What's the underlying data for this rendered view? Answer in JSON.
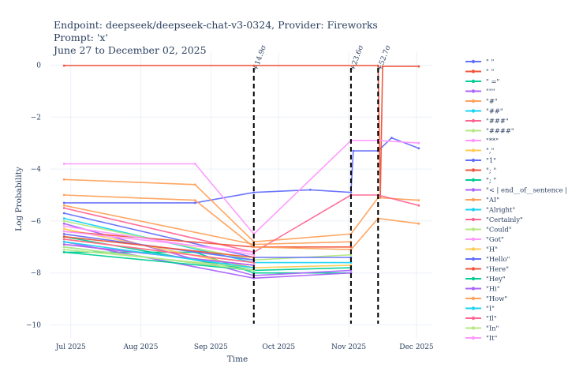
{
  "chart_data": {
    "type": "line",
    "title_lines": [
      "Endpoint: deepseek/deepseek-chat-v3-0324, Provider: Fireworks",
      "Prompt: 'x'",
      "June 27 to December 02, 2025"
    ],
    "xlabel": "Time",
    "ylabel": "Log Probability",
    "x_ticks": [
      "Jul 2025",
      "Aug 2025",
      "Sep 2025",
      "Oct 2025",
      "Nov 2025",
      "Dec 2025"
    ],
    "x_tick_dates": [
      "2025-07-01",
      "2025-08-01",
      "2025-09-01",
      "2025-10-01",
      "2025-11-01",
      "2025-12-01"
    ],
    "xlim": [
      "2025-06-22",
      "2025-12-08"
    ],
    "y_ticks": [
      0,
      -2,
      -4,
      -6,
      -8,
      -10
    ],
    "y_tick_labels": [
      "0",
      "−2",
      "−4",
      "−6",
      "−8",
      "−10"
    ],
    "ylim": [
      -10.5,
      0.5
    ],
    "grid": true,
    "legend_position": "right",
    "change_points": [
      {
        "date": "2025-09-20",
        "label": "+14.9σ"
      },
      {
        "date": "2025-11-02",
        "label": "+23.6σ"
      },
      {
        "date": "2025-11-14",
        "label": "+52.7σ"
      }
    ],
    "series": [
      {
        "name": "\" \"",
        "color": "#636efa",
        "values": [
          [
            "2025-06-28",
            -5.3
          ],
          [
            "2025-08-25",
            -5.3
          ],
          [
            "2025-09-20",
            -4.9
          ],
          [
            "2025-10-15",
            -4.8
          ],
          [
            "2025-11-02",
            -4.9
          ],
          [
            "2025-11-03",
            -3.3
          ],
          [
            "2025-11-14",
            -3.3
          ],
          [
            "2025-11-20",
            -2.8
          ],
          [
            "2025-12-02",
            -3.2
          ]
        ]
      },
      {
        "name": "\"  \"",
        "color": "#ef553b",
        "values": [
          [
            "2025-06-28",
            -0.02
          ],
          [
            "2025-09-20",
            -0.02
          ],
          [
            "2025-11-14",
            -0.02
          ],
          [
            "2025-11-15",
            -5.1
          ],
          [
            "2025-11-16",
            -0.05
          ],
          [
            "2025-12-02",
            -0.05
          ]
        ]
      },
      {
        "name": "\" =\"",
        "color": "#00cc96",
        "values": [
          [
            "2025-06-28",
            -7.2
          ],
          [
            "2025-08-25",
            -7.2
          ],
          [
            "2025-09-20",
            -8.0
          ],
          [
            "2025-11-02",
            -8.0
          ]
        ]
      },
      {
        "name": "\"\"\"",
        "color": "#ab63fa",
        "values": [
          [
            "2025-06-28",
            -6.1
          ],
          [
            "2025-09-20",
            -8.1
          ],
          [
            "2025-11-02",
            -7.9
          ]
        ]
      },
      {
        "name": "\"#\"",
        "color": "#ffa15a",
        "values": [
          [
            "2025-06-28",
            -4.4
          ],
          [
            "2025-08-25",
            -4.6
          ],
          [
            "2025-09-20",
            -6.8
          ],
          [
            "2025-11-02",
            -6.5
          ],
          [
            "2025-11-14",
            -5.1
          ],
          [
            "2025-12-02",
            -5.2
          ]
        ]
      },
      {
        "name": "\"##\"",
        "color": "#19d3f3",
        "values": [
          [
            "2025-06-28",
            -5.9
          ],
          [
            "2025-09-20",
            -7.6
          ],
          [
            "2025-11-02",
            -7.6
          ]
        ]
      },
      {
        "name": "\"###\"",
        "color": "#ff6692",
        "values": [
          [
            "2025-06-28",
            -5.5
          ],
          [
            "2025-09-20",
            -7.2
          ],
          [
            "2025-11-02",
            -5.0
          ],
          [
            "2025-11-14",
            -5.0
          ],
          [
            "2025-12-02",
            -5.4
          ]
        ]
      },
      {
        "name": "\"####\"",
        "color": "#b6e880",
        "values": [
          [
            "2025-06-28",
            -6.0
          ],
          [
            "2025-09-20",
            -7.5
          ],
          [
            "2025-11-02",
            -7.3
          ]
        ]
      },
      {
        "name": "\"**\"",
        "color": "#ff97ff",
        "values": [
          [
            "2025-06-28",
            -3.8
          ],
          [
            "2025-08-25",
            -3.8
          ],
          [
            "2025-09-20",
            -6.5
          ],
          [
            "2025-11-02",
            -2.9
          ],
          [
            "2025-11-14",
            -2.9
          ],
          [
            "2025-12-02",
            -3.0
          ]
        ]
      },
      {
        "name": "\",\"",
        "color": "#fecb52",
        "values": [
          [
            "2025-06-28",
            -6.3
          ],
          [
            "2025-09-20",
            -7.8
          ],
          [
            "2025-11-02",
            -7.7
          ]
        ]
      },
      {
        "name": "\"1\"",
        "color": "#636efa",
        "values": [
          [
            "2025-06-28",
            -5.7
          ],
          [
            "2025-09-20",
            -7.4
          ],
          [
            "2025-11-02",
            -7.4
          ]
        ]
      },
      {
        "name": "\"; \"",
        "color": "#ef553b",
        "values": [
          [
            "2025-06-28",
            -6.4
          ],
          [
            "2025-09-20",
            -7.0
          ],
          [
            "2025-11-02",
            -7.0
          ]
        ]
      },
      {
        "name": "\";  \"",
        "color": "#00cc96",
        "values": [
          [
            "2025-06-28",
            -6.6
          ],
          [
            "2025-09-20",
            -7.9
          ],
          [
            "2025-11-02",
            -7.8
          ]
        ]
      },
      {
        "name": "\"< | end__of__sentence | >\"",
        "color": "#ab63fa",
        "values": [
          [
            "2025-06-28",
            -6.8
          ],
          [
            "2025-09-20",
            -8.2
          ],
          [
            "2025-11-02",
            -8.0
          ]
        ]
      },
      {
        "name": "\"AI\"",
        "color": "#ffa15a",
        "values": [
          [
            "2025-06-28",
            -5.0
          ],
          [
            "2025-08-25",
            -5.2
          ],
          [
            "2025-09-20",
            -7.0
          ],
          [
            "2025-11-02",
            -7.1
          ],
          [
            "2025-11-14",
            -5.9
          ],
          [
            "2025-12-02",
            -6.1
          ]
        ]
      },
      {
        "name": "\"Alright\"",
        "color": "#19d3f3",
        "values": [
          [
            "2025-06-28",
            -7.0
          ],
          [
            "2025-09-20",
            -7.9
          ]
        ]
      },
      {
        "name": "\"Certainly\"",
        "color": "#ff6692",
        "values": [
          [
            "2025-06-28",
            -6.9
          ],
          [
            "2025-09-20",
            -7.7
          ]
        ]
      },
      {
        "name": "\"Could\"",
        "color": "#b6e880",
        "values": [
          [
            "2025-06-28",
            -7.1
          ],
          [
            "2025-09-20",
            -7.8
          ]
        ]
      },
      {
        "name": "\"Got\"",
        "color": "#ff97ff",
        "values": [
          [
            "2025-06-28",
            -6.2
          ],
          [
            "2025-09-20",
            -7.3
          ]
        ]
      },
      {
        "name": "\"H\"",
        "color": "#fecb52",
        "values": [
          [
            "2025-06-28",
            -6.7
          ],
          [
            "2025-09-20",
            -7.6
          ]
        ]
      },
      {
        "name": "\"Hello\"",
        "color": "#636efa",
        "values": [
          [
            "2025-06-28",
            -6.5
          ],
          [
            "2025-09-20",
            -7.5
          ]
        ]
      },
      {
        "name": "\"Here\"",
        "color": "#ef553b",
        "values": [
          [
            "2025-06-28",
            -6.6
          ],
          [
            "2025-09-20",
            -7.4
          ]
        ]
      },
      {
        "name": "\"Hey\"",
        "color": "#00cc96",
        "values": [
          [
            "2025-06-28",
            -7.2
          ],
          [
            "2025-09-20",
            -7.9
          ]
        ]
      },
      {
        "name": "\"Hi\"",
        "color": "#ab63fa",
        "values": [
          [
            "2025-06-28",
            -6.9
          ],
          [
            "2025-09-20",
            -7.7
          ]
        ]
      },
      {
        "name": "\"How\"",
        "color": "#ffa15a",
        "values": [
          [
            "2025-06-28",
            -5.4
          ],
          [
            "2025-09-20",
            -6.9
          ],
          [
            "2025-11-02",
            -6.8
          ]
        ]
      },
      {
        "name": "\"I\"",
        "color": "#19d3f3",
        "values": [
          [
            "2025-06-28",
            -6.8
          ],
          [
            "2025-09-20",
            -7.8
          ]
        ]
      },
      {
        "name": "\"Il\"",
        "color": "#ff6692",
        "values": [
          [
            "2025-06-28",
            -6.7
          ],
          [
            "2025-09-20",
            -7.6
          ]
        ]
      },
      {
        "name": "\"In\"",
        "color": "#b6e880",
        "values": [
          [
            "2025-06-28",
            -7.0
          ],
          [
            "2025-09-20",
            -7.9
          ]
        ]
      },
      {
        "name": "\"It\"",
        "color": "#ff97ff",
        "values": [
          [
            "2025-06-28",
            -6.4
          ],
          [
            "2025-09-20",
            -7.2
          ]
        ]
      }
    ]
  }
}
